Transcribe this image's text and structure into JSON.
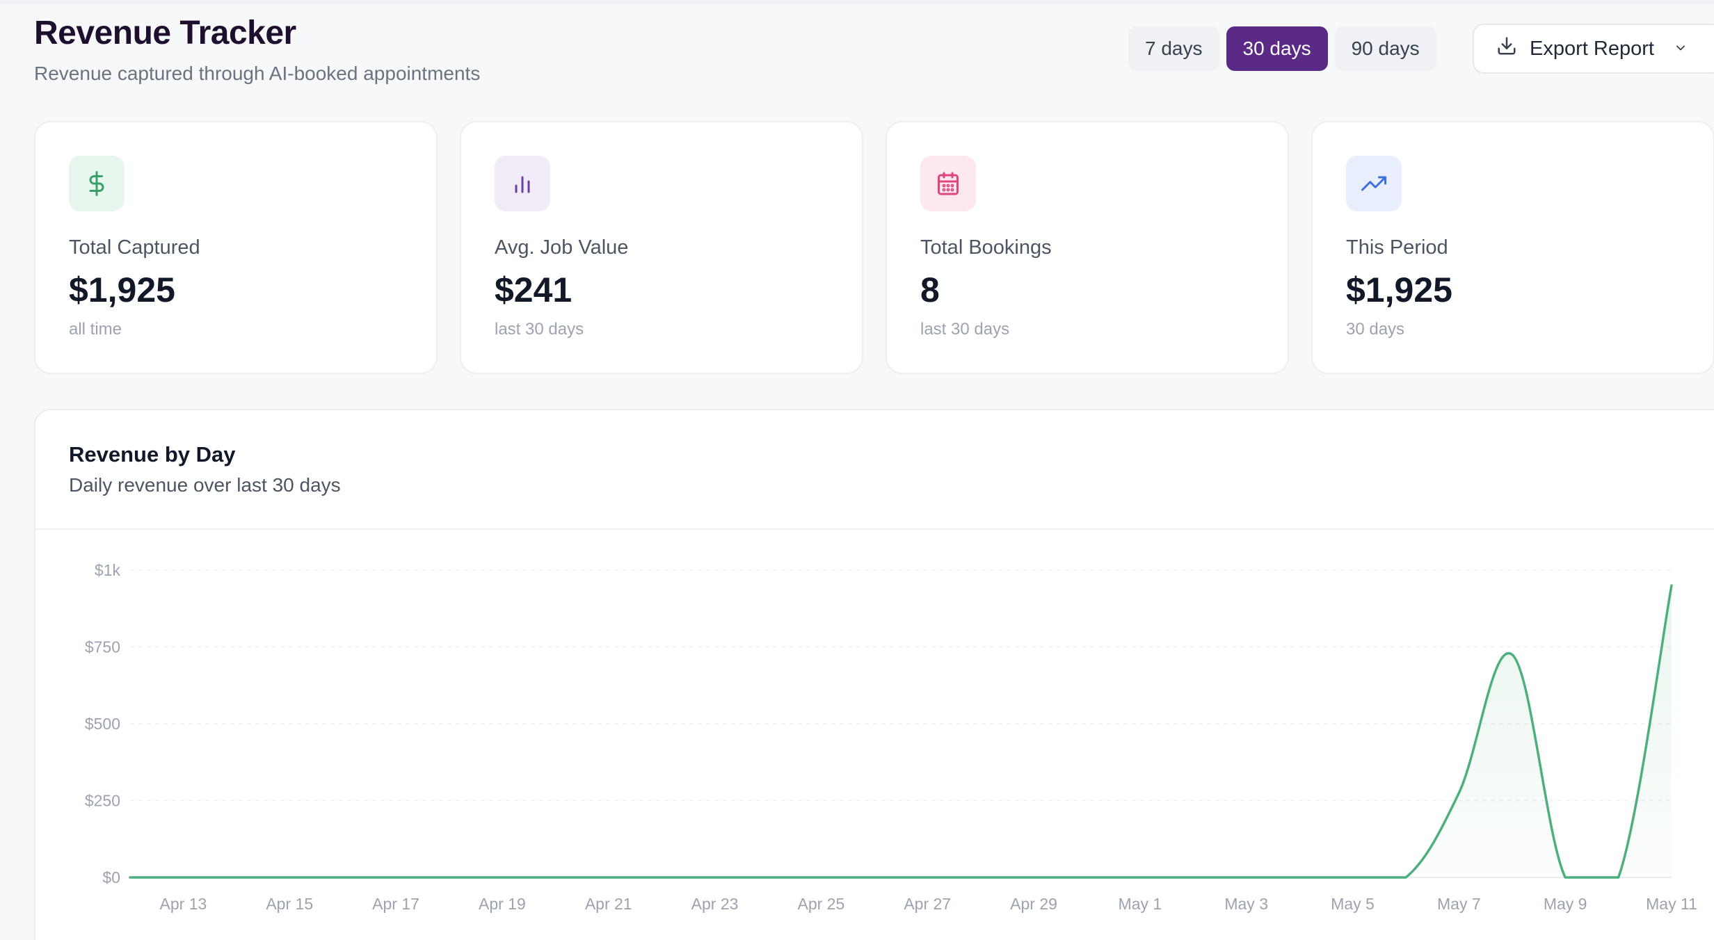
{
  "header": {
    "title": "Revenue Tracker",
    "subtitle": "Revenue captured through AI-booked appointments"
  },
  "range_selector": {
    "options": [
      "7 days",
      "30 days",
      "90 days"
    ],
    "selected": "30 days"
  },
  "export": {
    "label": "Export Report",
    "icon": "download-icon"
  },
  "colors": {
    "accent": "#5b2a86",
    "line": "#4caf7d",
    "green_bg": "#e8f7ee",
    "green_fg": "#3aa06a",
    "purple_bg": "#f1eaf7",
    "purple_fg": "#6b3fa0",
    "pink_bg": "#fde8f0",
    "pink_fg": "#e0457b",
    "blue_bg": "#e9eefc",
    "blue_fg": "#3b6fe0"
  },
  "stats": [
    {
      "icon": "dollar-icon",
      "label": "Total Captured",
      "value": "$1,925",
      "note": "all time"
    },
    {
      "icon": "bar-chart-icon",
      "label": "Avg. Job Value",
      "value": "$241",
      "note": "last 30 days"
    },
    {
      "icon": "calendar-icon",
      "label": "Total Bookings",
      "value": "8",
      "note": "last 30 days"
    },
    {
      "icon": "trending-up-icon",
      "label": "This Period",
      "value": "$1,925",
      "note": "30 days"
    }
  ],
  "chart": {
    "title": "Revenue by Day",
    "subtitle": "Daily revenue over last 30 days"
  },
  "chart_data": {
    "type": "area",
    "title": "Revenue by Day",
    "xlabel": "",
    "ylabel": "",
    "ylim": [
      0,
      1000
    ],
    "y_ticks": [
      0,
      250,
      500,
      750,
      1000
    ],
    "y_tick_labels": [
      "$0",
      "$250",
      "$500",
      "$750",
      "$1k"
    ],
    "x_tick_labels": [
      "Apr 13",
      "Apr 15",
      "Apr 17",
      "Apr 19",
      "Apr 21",
      "Apr 23",
      "Apr 25",
      "Apr 27",
      "Apr 29",
      "May 1",
      "May 3",
      "May 5",
      "May 7",
      "May 9",
      "May 11"
    ],
    "x": [
      "Apr 12",
      "Apr 13",
      "Apr 14",
      "Apr 15",
      "Apr 16",
      "Apr 17",
      "Apr 18",
      "Apr 19",
      "Apr 20",
      "Apr 21",
      "Apr 22",
      "Apr 23",
      "Apr 24",
      "Apr 25",
      "Apr 26",
      "Apr 27",
      "Apr 28",
      "Apr 29",
      "Apr 30",
      "May 1",
      "May 2",
      "May 3",
      "May 4",
      "May 5",
      "May 6",
      "May 7",
      "May 8",
      "May 9",
      "May 10",
      "May 11"
    ],
    "series": [
      {
        "values": [
          0,
          0,
          0,
          0,
          0,
          0,
          0,
          0,
          0,
          0,
          0,
          0,
          0,
          0,
          0,
          0,
          0,
          0,
          0,
          0,
          0,
          0,
          0,
          0,
          0,
          275,
          725,
          0,
          0,
          950
        ]
      }
    ],
    "grid": true,
    "legend": "none"
  }
}
